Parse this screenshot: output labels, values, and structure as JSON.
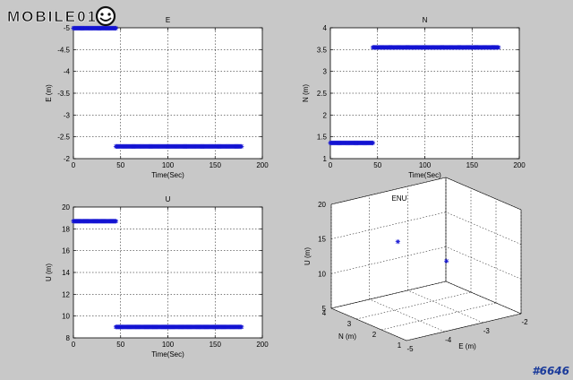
{
  "branding": {
    "logo_text": "MOBILE01",
    "watermark": "#6646"
  },
  "colors": {
    "marker": "#1414d2",
    "background": "#c8c8c8",
    "axes_bg": "#ffffff",
    "grid": "#000000"
  },
  "chart_data": [
    {
      "id": "e",
      "type": "scatter",
      "title": "E",
      "xlabel": "Time(Sec)",
      "ylabel": "E (m)",
      "xlim": [
        0,
        200
      ],
      "ylim": [
        -5,
        -2
      ],
      "y_axis_reversed": true,
      "grid": true,
      "xticks": [
        0,
        50,
        100,
        150,
        200
      ],
      "xtick_labels": [
        "0",
        "50",
        "100",
        "150",
        "200"
      ],
      "yticks": [
        -5,
        -4.5,
        -4,
        -3.5,
        -3,
        -2.5,
        -2
      ],
      "ytick_labels": [
        "-5",
        "-4.5",
        "-4",
        "-3.5",
        "-3",
        "-2.5",
        "-2"
      ],
      "series": [
        {
          "x_range": [
            0,
            45
          ],
          "y": -4.99
        },
        {
          "x_range": [
            45,
            178
          ],
          "y": -2.28
        }
      ]
    },
    {
      "id": "n",
      "type": "scatter",
      "title": "N",
      "xlabel": "Time(Sec)",
      "ylabel": "N (m)",
      "xlim": [
        0,
        200
      ],
      "ylim": [
        1,
        4
      ],
      "grid": true,
      "xticks": [
        0,
        50,
        100,
        150,
        200
      ],
      "xtick_labels": [
        "0",
        "50",
        "100",
        "150",
        "200"
      ],
      "yticks": [
        1,
        1.5,
        2,
        2.5,
        3,
        3.5,
        4
      ],
      "ytick_labels": [
        "1",
        "1.5",
        "2",
        "2.5",
        "3",
        "3.5",
        "4"
      ],
      "series": [
        {
          "x_range": [
            0,
            45
          ],
          "y": 1.36
        },
        {
          "x_range": [
            45,
            178
          ],
          "y": 3.55
        }
      ]
    },
    {
      "id": "u",
      "type": "scatter",
      "title": "U",
      "xlabel": "Time(Sec)",
      "ylabel": "U (m)",
      "xlim": [
        0,
        200
      ],
      "ylim": [
        8,
        20
      ],
      "grid": true,
      "xticks": [
        0,
        50,
        100,
        150,
        200
      ],
      "xtick_labels": [
        "0",
        "50",
        "100",
        "150",
        "200"
      ],
      "yticks": [
        8,
        10,
        12,
        14,
        16,
        18,
        20
      ],
      "ytick_labels": [
        "8",
        "10",
        "12",
        "14",
        "16",
        "18",
        "20"
      ],
      "series": [
        {
          "x_range": [
            0,
            45
          ],
          "y": 18.7
        },
        {
          "x_range": [
            45,
            178
          ],
          "y": 9.0
        }
      ]
    },
    {
      "id": "enu",
      "type": "scatter3d",
      "title": "ENU",
      "xlabel": "E (m)",
      "ylabel": "N (m)",
      "zlabel": "U (m)",
      "xlim": [
        -5,
        -2
      ],
      "ylim": [
        1,
        4
      ],
      "zlim": [
        5,
        20
      ],
      "grid": true,
      "xticks": [
        -5,
        -4,
        -3,
        -2
      ],
      "xtick_labels": [
        "-5",
        "-4",
        "-3",
        "-2"
      ],
      "yticks": [
        1,
        2,
        3,
        4
      ],
      "ytick_labels": [
        "1",
        "2",
        "3",
        "4"
      ],
      "zticks": [
        5,
        10,
        15,
        20
      ],
      "ztick_labels": [
        "5",
        "10",
        "15",
        "20"
      ],
      "points": [
        {
          "E": -4.99,
          "N": 1.36,
          "U": 18.7
        },
        {
          "E": -2.28,
          "N": 3.55,
          "U": 9.0
        }
      ]
    }
  ]
}
